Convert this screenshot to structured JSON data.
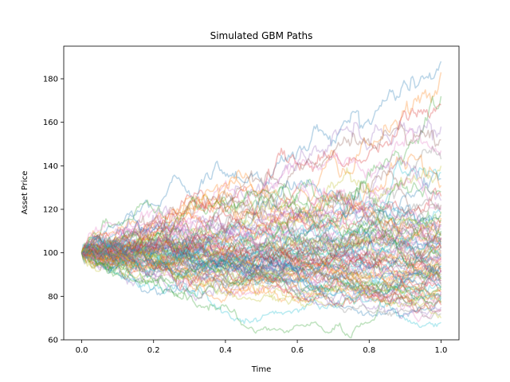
{
  "chart_data": {
    "type": "line",
    "title": "Simulated GBM Paths",
    "xlabel": "Time",
    "ylabel": "Asset Price",
    "xlim": [
      -0.05,
      1.05
    ],
    "ylim": [
      60,
      195
    ],
    "xticks": [
      0.0,
      0.2,
      0.4,
      0.6,
      0.8,
      1.0
    ],
    "xtick_labels": [
      "0.0",
      "0.2",
      "0.4",
      "0.6",
      "0.8",
      "1.0"
    ],
    "yticks": [
      60,
      80,
      100,
      120,
      140,
      160,
      180
    ],
    "ytick_labels": [
      "60",
      "80",
      "100",
      "120",
      "140",
      "160",
      "180"
    ],
    "grid": false,
    "legend": "none",
    "initial_price": 100,
    "time_start": 0.0,
    "time_end": 1.0,
    "num_paths": 100,
    "line_alpha": 0.3,
    "series_colors": [
      "#1f77b4",
      "#ff7f0e",
      "#2ca02c",
      "#d62728",
      "#9467bd",
      "#8c564b",
      "#e377c2",
      "#7f7f7f",
      "#bcbd22",
      "#17becf"
    ],
    "path_end_values": [
      188,
      183,
      172,
      168,
      158,
      152,
      147,
      143,
      140,
      137,
      134,
      131,
      128,
      126,
      124,
      122,
      121,
      120,
      119,
      118,
      117,
      116,
      115,
      114,
      113,
      113,
      112,
      111,
      110,
      110,
      109,
      108,
      108,
      107,
      107,
      106,
      106,
      105,
      105,
      104,
      104,
      103,
      103,
      102,
      102,
      101,
      101,
      100,
      100,
      99,
      99,
      98,
      98,
      97,
      97,
      96,
      96,
      95,
      95,
      94,
      94,
      93,
      93,
      92,
      92,
      91,
      91,
      90,
      90,
      89,
      89,
      88,
      88,
      87,
      87,
      86,
      86,
      85,
      85,
      84,
      84,
      83,
      83,
      82,
      82,
      81,
      81,
      80,
      80,
      79,
      79,
      78,
      77,
      76,
      75,
      74,
      73,
      72,
      70,
      68
    ]
  }
}
